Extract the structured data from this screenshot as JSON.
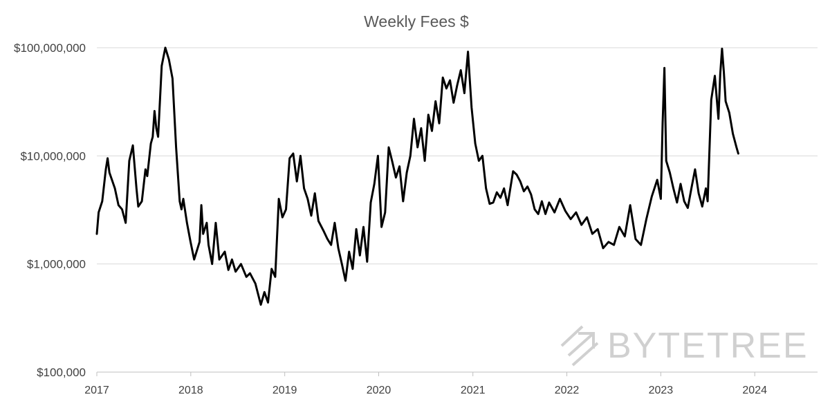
{
  "chart_data": {
    "type": "line",
    "title": "Weekly Fees $",
    "xlabel": "",
    "ylabel": "",
    "y_scale": "log",
    "ylim": [
      100000,
      100000000
    ],
    "xlim": [
      "2017-01-01",
      "2024-09-01"
    ],
    "grid": "horizontal",
    "yticks": [
      {
        "value": 100000000,
        "label": "$100,000,000"
      },
      {
        "value": 10000000,
        "label": "$10,000,000"
      },
      {
        "value": 1000000,
        "label": "$1,000,000"
      },
      {
        "value": 100000,
        "label": "$100,000"
      }
    ],
    "xticks": [
      {
        "value": "2017-01-01",
        "label": "2017"
      },
      {
        "value": "2018-01-01",
        "label": "2018"
      },
      {
        "value": "2019-01-01",
        "label": "2019"
      },
      {
        "value": "2020-01-01",
        "label": "2020"
      },
      {
        "value": "2021-01-01",
        "label": "2021"
      },
      {
        "value": "2022-01-01",
        "label": "2022"
      },
      {
        "value": "2023-01-01",
        "label": "2023"
      },
      {
        "value": "2024-01-01",
        "label": "2024"
      }
    ],
    "line_color": "#000000",
    "series": [
      {
        "x": [
          "2017-01-01",
          "2017-01-08",
          "2017-01-22",
          "2017-02-05",
          "2017-02-12",
          "2017-02-19",
          "2017-03-12",
          "2017-03-26",
          "2017-04-09",
          "2017-04-23",
          "2017-05-07",
          "2017-05-21",
          "2017-06-04",
          "2017-06-11",
          "2017-06-25",
          "2017-07-09",
          "2017-07-16",
          "2017-07-30",
          "2017-08-06",
          "2017-08-13",
          "2017-08-20",
          "2017-08-27",
          "2017-09-10",
          "2017-09-24",
          "2017-10-08",
          "2017-10-22",
          "2017-11-05",
          "2017-11-19",
          "2017-11-26",
          "2017-12-03",
          "2017-12-17",
          "2017-12-31",
          "2018-01-14",
          "2018-02-04",
          "2018-02-11",
          "2018-02-18",
          "2018-03-04",
          "2018-03-11",
          "2018-03-25",
          "2018-04-08",
          "2018-04-22",
          "2018-05-13",
          "2018-05-27",
          "2018-06-10",
          "2018-06-24",
          "2018-07-15",
          "2018-08-05",
          "2018-08-19",
          "2018-09-09",
          "2018-09-30",
          "2018-10-14",
          "2018-10-28",
          "2018-11-11",
          "2018-11-25",
          "2018-12-09",
          "2018-12-23",
          "2019-01-06",
          "2019-01-20",
          "2019-02-03",
          "2019-02-17",
          "2019-03-03",
          "2019-03-17",
          "2019-03-31",
          "2019-04-14",
          "2019-04-28",
          "2019-05-12",
          "2019-06-02",
          "2019-06-16",
          "2019-06-30",
          "2019-07-14",
          "2019-07-28",
          "2019-08-11",
          "2019-08-25",
          "2019-09-08",
          "2019-09-22",
          "2019-10-06",
          "2019-10-20",
          "2019-11-03",
          "2019-11-17",
          "2019-12-01",
          "2019-12-15",
          "2019-12-29",
          "2020-01-12",
          "2020-01-26",
          "2020-02-09",
          "2020-02-23",
          "2020-03-08",
          "2020-03-22",
          "2020-04-05",
          "2020-04-19",
          "2020-05-03",
          "2020-05-17",
          "2020-05-31",
          "2020-06-14",
          "2020-06-28",
          "2020-07-12",
          "2020-07-26",
          "2020-08-09",
          "2020-08-23",
          "2020-09-06",
          "2020-09-20",
          "2020-10-04",
          "2020-10-18",
          "2020-11-01",
          "2020-11-15",
          "2020-11-29",
          "2020-12-13",
          "2020-12-27",
          "2021-01-10",
          "2021-01-24",
          "2021-02-07",
          "2021-02-21",
          "2021-03-07",
          "2021-03-21",
          "2021-04-04",
          "2021-04-18",
          "2021-05-02",
          "2021-05-16",
          "2021-06-06",
          "2021-06-20",
          "2021-07-04",
          "2021-07-18",
          "2021-08-01",
          "2021-08-15",
          "2021-08-29",
          "2021-09-12",
          "2021-09-26",
          "2021-10-10",
          "2021-10-24",
          "2021-11-14",
          "2021-12-05",
          "2021-12-26",
          "2022-01-16",
          "2022-02-06",
          "2022-02-27",
          "2022-03-20",
          "2022-04-10",
          "2022-05-01",
          "2022-05-22",
          "2022-06-12",
          "2022-07-03",
          "2022-07-24",
          "2022-08-14",
          "2022-09-04",
          "2022-09-25",
          "2022-10-16",
          "2022-11-06",
          "2022-11-27",
          "2022-12-18",
          "2023-01-01",
          "2023-01-08",
          "2023-01-15",
          "2023-01-22",
          "2023-02-05",
          "2023-02-19",
          "2023-03-05",
          "2023-03-19",
          "2023-04-02",
          "2023-04-16",
          "2023-04-30",
          "2023-05-14",
          "2023-05-28",
          "2023-06-11",
          "2023-06-25",
          "2023-07-02",
          "2023-07-16",
          "2023-07-30",
          "2023-08-13",
          "2023-08-20",
          "2023-08-27",
          "2023-09-03",
          "2023-09-10",
          "2023-09-24",
          "2023-10-08",
          "2023-10-22",
          "2023-10-29"
        ],
        "y": [
          1900000,
          3000000,
          3800000,
          7500000,
          9500000,
          7000000,
          5000000,
          3500000,
          3200000,
          2400000,
          9000000,
          12500000,
          5000000,
          3400000,
          3800000,
          7500000,
          6500000,
          13000000,
          15000000,
          26000000,
          18000000,
          15000000,
          68000000,
          100000000,
          78000000,
          52000000,
          12000000,
          3800000,
          3200000,
          4000000,
          2400000,
          1600000,
          1100000,
          1600000,
          3500000,
          1900000,
          2400000,
          1500000,
          1000000,
          2400000,
          1100000,
          1300000,
          880000,
          1100000,
          850000,
          1000000,
          760000,
          820000,
          660000,
          420000,
          550000,
          440000,
          900000,
          760000,
          4000000,
          2700000,
          3200000,
          9500000,
          10500000,
          5800000,
          10000000,
          5000000,
          4000000,
          2800000,
          4500000,
          2500000,
          2000000,
          1700000,
          1500000,
          2400000,
          1400000,
          1000000,
          700000,
          1300000,
          900000,
          2100000,
          1200000,
          2200000,
          1050000,
          3700000,
          5500000,
          10000000,
          2200000,
          3000000,
          12000000,
          8800000,
          6300000,
          8000000,
          3800000,
          7000000,
          10000000,
          22000000,
          12000000,
          18000000,
          9000000,
          24000000,
          17000000,
          32000000,
          20000000,
          53000000,
          42000000,
          50000000,
          31000000,
          45000000,
          62000000,
          38000000,
          92000000,
          28000000,
          13000000,
          9000000,
          10000000,
          5000000,
          3600000,
          3700000,
          4600000,
          4100000,
          5000000,
          3500000,
          7200000,
          6700000,
          5800000,
          4700000,
          5200000,
          4400000,
          3200000,
          2900000,
          3800000,
          2900000,
          3700000,
          3000000,
          4000000,
          3100000,
          2600000,
          3000000,
          2300000,
          2700000,
          1900000,
          2100000,
          1400000,
          1600000,
          1500000,
          2200000,
          1800000,
          3500000,
          1700000,
          1500000,
          2600000,
          4200000,
          6000000,
          4000000,
          20000000,
          65000000,
          9000000,
          7000000,
          5000000,
          3700000,
          5500000,
          3800000,
          3300000,
          5000000,
          7500000,
          4500000,
          3400000,
          5000000,
          3800000,
          33000000,
          55000000,
          22000000,
          57000000,
          98000000,
          60000000,
          32000000,
          25000000,
          16000000,
          12000000,
          10500000
        ]
      }
    ],
    "watermark": "BYTETREE"
  }
}
